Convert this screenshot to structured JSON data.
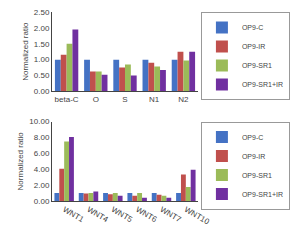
{
  "chart_data": [
    {
      "type": "bar",
      "categories": [
        "beta-C",
        "O",
        "S",
        "N1",
        "N2"
      ],
      "series": [
        {
          "name": "OP9-C",
          "color": "#4472c4",
          "values": [
            1.0,
            1.0,
            1.0,
            1.0,
            1.0
          ]
        },
        {
          "name": "OP9-IR",
          "color": "#c0504d",
          "values": [
            1.15,
            0.63,
            0.75,
            0.9,
            1.25
          ]
        },
        {
          "name": "OP9-SR1",
          "color": "#9bbb59",
          "values": [
            1.5,
            0.63,
            0.85,
            0.78,
            0.97
          ]
        },
        {
          "name": "OP9-SR1+IR",
          "color": "#7030a0",
          "values": [
            1.95,
            0.52,
            0.5,
            0.67,
            1.25
          ]
        }
      ],
      "ylabel": "Normalized ratio",
      "ylim": [
        0,
        2.5
      ],
      "yticks": [
        {
          "value": 0,
          "label": "0.00"
        },
        {
          "value": 0.5,
          "label": "0.50"
        },
        {
          "value": 1,
          "label": "1.00"
        },
        {
          "value": 1.5,
          "label": "1.50"
        },
        {
          "value": 2,
          "label": "2.00"
        },
        {
          "value": 2.5,
          "label": "2.50"
        }
      ],
      "grid": false,
      "legend": "upper right"
    },
    {
      "type": "bar",
      "categories": [
        "WNT1",
        "WNT4",
        "WNT5",
        "WNT6",
        "WNT7",
        "WNT10"
      ],
      "series": [
        {
          "name": "OP9-C",
          "color": "#4472c4",
          "values": [
            1.0,
            1.0,
            1.0,
            1.0,
            1.0,
            1.0
          ]
        },
        {
          "name": "OP9-IR",
          "color": "#c0504d",
          "values": [
            4.05,
            0.95,
            0.85,
            0.65,
            0.8,
            3.35
          ]
        },
        {
          "name": "OP9-SR1",
          "color": "#9bbb59",
          "values": [
            7.5,
            1.0,
            1.0,
            1.0,
            0.65,
            1.75
          ]
        },
        {
          "name": "OP9-SR1+IR",
          "color": "#7030a0",
          "values": [
            8.05,
            1.2,
            0.65,
            0.42,
            0.4,
            3.95
          ]
        }
      ],
      "ylabel": "Normalized ratio",
      "ylim": [
        0,
        10
      ],
      "yticks": [
        {
          "value": 0,
          "label": "0.00"
        },
        {
          "value": 2,
          "label": "2.00"
        },
        {
          "value": 4,
          "label": "4.00"
        },
        {
          "value": 6,
          "label": "6.00"
        },
        {
          "value": 8,
          "label": "8.00"
        },
        {
          "value": 10,
          "label": "10.00"
        }
      ],
      "grid": false,
      "legend": "upper right"
    }
  ]
}
